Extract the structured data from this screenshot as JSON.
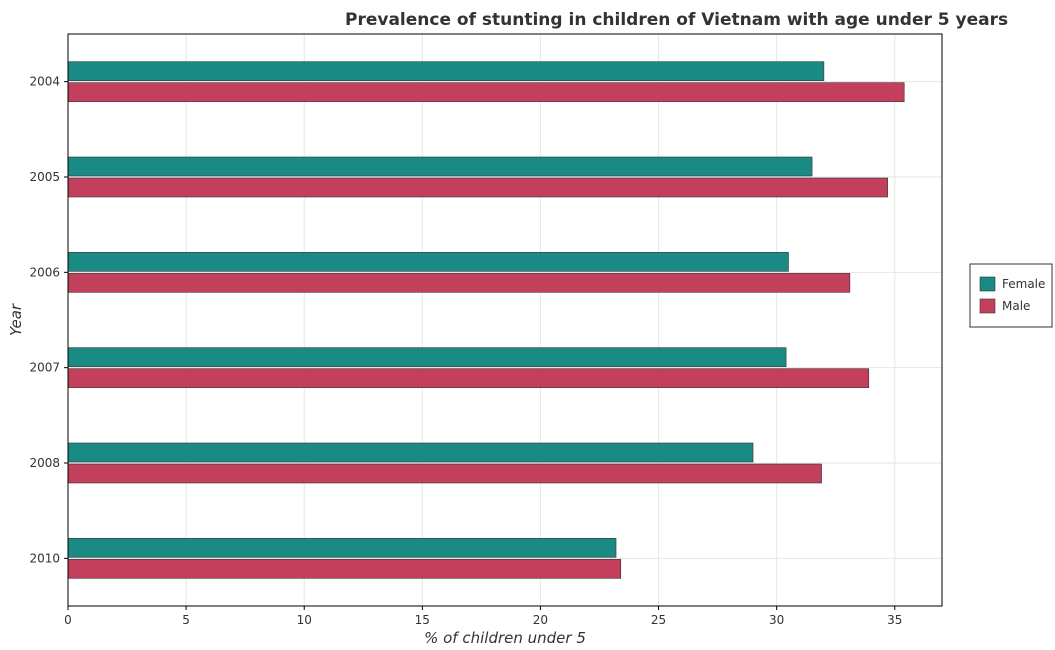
{
  "chart_data": {
    "type": "bar",
    "orientation": "horizontal",
    "title": "Prevalence of stunting in children of Vietnam with age under 5 years",
    "xlabel": "% of children under 5",
    "ylabel": "Year",
    "categories": [
      "2004",
      "2005",
      "2006",
      "2007",
      "2008",
      "2010"
    ],
    "series": [
      {
        "name": "Female",
        "color": "#1a8a84",
        "values": [
          32.0,
          31.5,
          30.5,
          30.4,
          29.0,
          23.2
        ]
      },
      {
        "name": "Male",
        "color": "#c2405c",
        "values": [
          35.4,
          34.7,
          33.1,
          33.9,
          31.9,
          23.4
        ]
      }
    ],
    "xlim": [
      0,
      37
    ],
    "xticks": [
      0,
      5,
      10,
      15,
      20,
      25,
      30,
      35
    ],
    "grid": true,
    "legend_position": "right"
  }
}
